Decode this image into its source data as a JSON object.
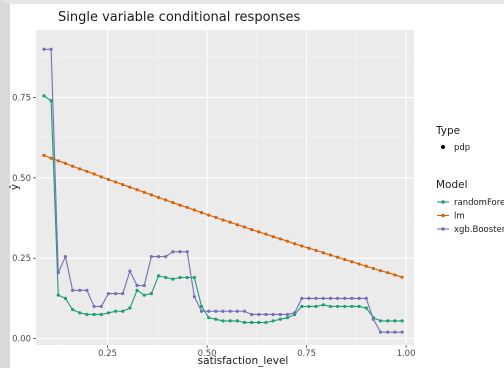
{
  "chart_data": {
    "type": "line",
    "title": "Single variable conditional responses",
    "xlabel": "satisfaction_level",
    "ylabel": "ŷ",
    "xlim": [
      0.07,
      1.02
    ],
    "ylim": [
      -0.02,
      0.96
    ],
    "x_ticks": [
      0.25,
      0.5,
      0.75,
      1.0
    ],
    "x_tick_labels": [
      "0.25",
      "0.50",
      "0.75",
      "1.00"
    ],
    "y_ticks": [
      0.0,
      0.25,
      0.5,
      0.75
    ],
    "y_tick_labels": [
      "0.00",
      "0.25",
      "0.50",
      "0.75"
    ],
    "grid": true,
    "legend_placement": "right",
    "legend": {
      "type_title": "Type",
      "type_entries": [
        "pdp"
      ],
      "model_title": "Model"
    },
    "x": [
      0.09,
      0.108,
      0.126,
      0.144,
      0.162,
      0.18,
      0.198,
      0.216,
      0.234,
      0.252,
      0.27,
      0.288,
      0.306,
      0.324,
      0.342,
      0.36,
      0.378,
      0.396,
      0.414,
      0.432,
      0.45,
      0.468,
      0.486,
      0.504,
      0.522,
      0.54,
      0.558,
      0.576,
      0.594,
      0.612,
      0.63,
      0.648,
      0.666,
      0.684,
      0.702,
      0.72,
      0.738,
      0.756,
      0.774,
      0.792,
      0.81,
      0.828,
      0.846,
      0.864,
      0.882,
      0.9,
      0.918,
      0.936,
      0.954,
      0.972,
      0.99
    ],
    "series": [
      {
        "name": "randomForest",
        "color": "#1b9e77",
        "values": [
          0.755,
          0.74,
          0.135,
          0.125,
          0.09,
          0.08,
          0.075,
          0.075,
          0.075,
          0.08,
          0.085,
          0.085,
          0.095,
          0.15,
          0.135,
          0.14,
          0.195,
          0.19,
          0.185,
          0.19,
          0.19,
          0.19,
          0.1,
          0.065,
          0.06,
          0.055,
          0.055,
          0.055,
          0.05,
          0.05,
          0.05,
          0.05,
          0.055,
          0.06,
          0.065,
          0.075,
          0.1,
          0.1,
          0.1,
          0.105,
          0.1,
          0.1,
          0.1,
          0.1,
          0.1,
          0.095,
          0.065,
          0.055,
          0.055,
          0.055,
          0.055
        ]
      },
      {
        "name": "lm",
        "color": "#d95f02",
        "values": [
          0.57,
          0.561,
          0.553,
          0.545,
          0.536,
          0.528,
          0.52,
          0.512,
          0.503,
          0.495,
          0.487,
          0.479,
          0.471,
          0.463,
          0.455,
          0.447,
          0.439,
          0.431,
          0.423,
          0.415,
          0.408,
          0.4,
          0.392,
          0.384,
          0.377,
          0.369,
          0.362,
          0.354,
          0.347,
          0.339,
          0.332,
          0.325,
          0.317,
          0.31,
          0.303,
          0.295,
          0.288,
          0.281,
          0.274,
          0.267,
          0.26,
          0.253,
          0.246,
          0.239,
          0.232,
          0.225,
          0.218,
          0.211,
          0.205,
          0.198,
          0.191
        ]
      },
      {
        "name": "xgb.Booster",
        "color": "#7570b3",
        "values": [
          0.9,
          0.9,
          0.205,
          0.255,
          0.15,
          0.15,
          0.15,
          0.1,
          0.1,
          0.14,
          0.14,
          0.14,
          0.21,
          0.165,
          0.165,
          0.255,
          0.255,
          0.255,
          0.27,
          0.27,
          0.27,
          0.13,
          0.085,
          0.085,
          0.085,
          0.085,
          0.085,
          0.085,
          0.085,
          0.075,
          0.075,
          0.075,
          0.075,
          0.075,
          0.075,
          0.08,
          0.125,
          0.125,
          0.125,
          0.125,
          0.125,
          0.125,
          0.125,
          0.125,
          0.125,
          0.125,
          0.06,
          0.02,
          0.02,
          0.02,
          0.02
        ]
      }
    ]
  }
}
